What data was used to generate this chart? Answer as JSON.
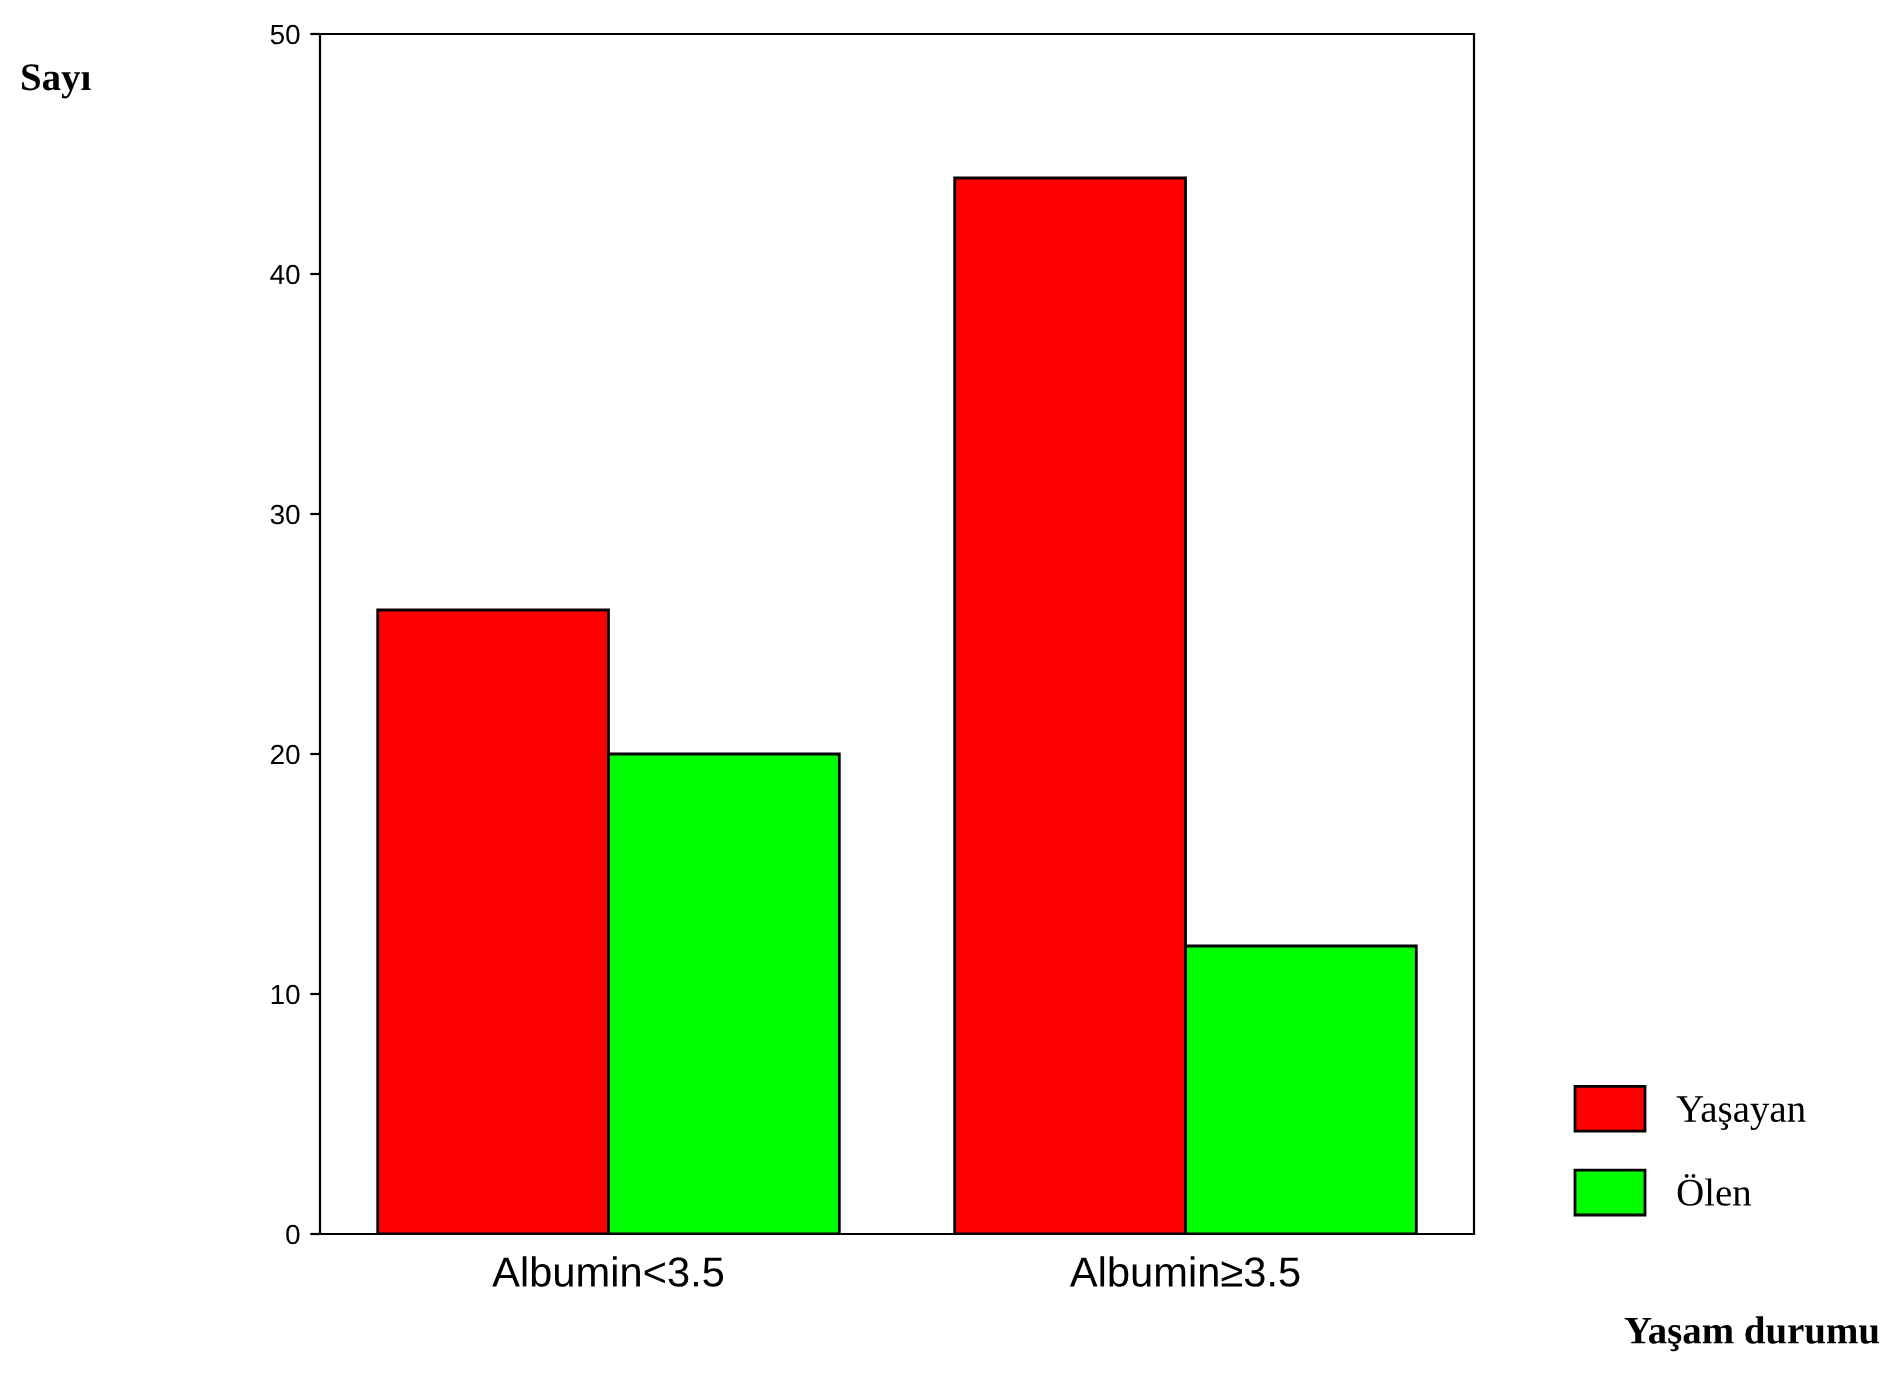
{
  "chart_data": {
    "type": "bar",
    "categories": [
      "Albumin<3.5",
      "Albumin≥3.5"
    ],
    "series": [
      {
        "name": "Yaşayan",
        "color": "#ff0000",
        "values": [
          26,
          44
        ]
      },
      {
        "name": "Ölen",
        "color": "#00ff00",
        "values": [
          20,
          12
        ]
      }
    ],
    "ylabel": "Sayı",
    "xlabel": "Yaşam durumu",
    "ylim": [
      0,
      50
    ],
    "yticks": [
      0,
      10,
      20,
      30,
      40,
      50
    ],
    "grid": false,
    "legend": "bottom right"
  }
}
